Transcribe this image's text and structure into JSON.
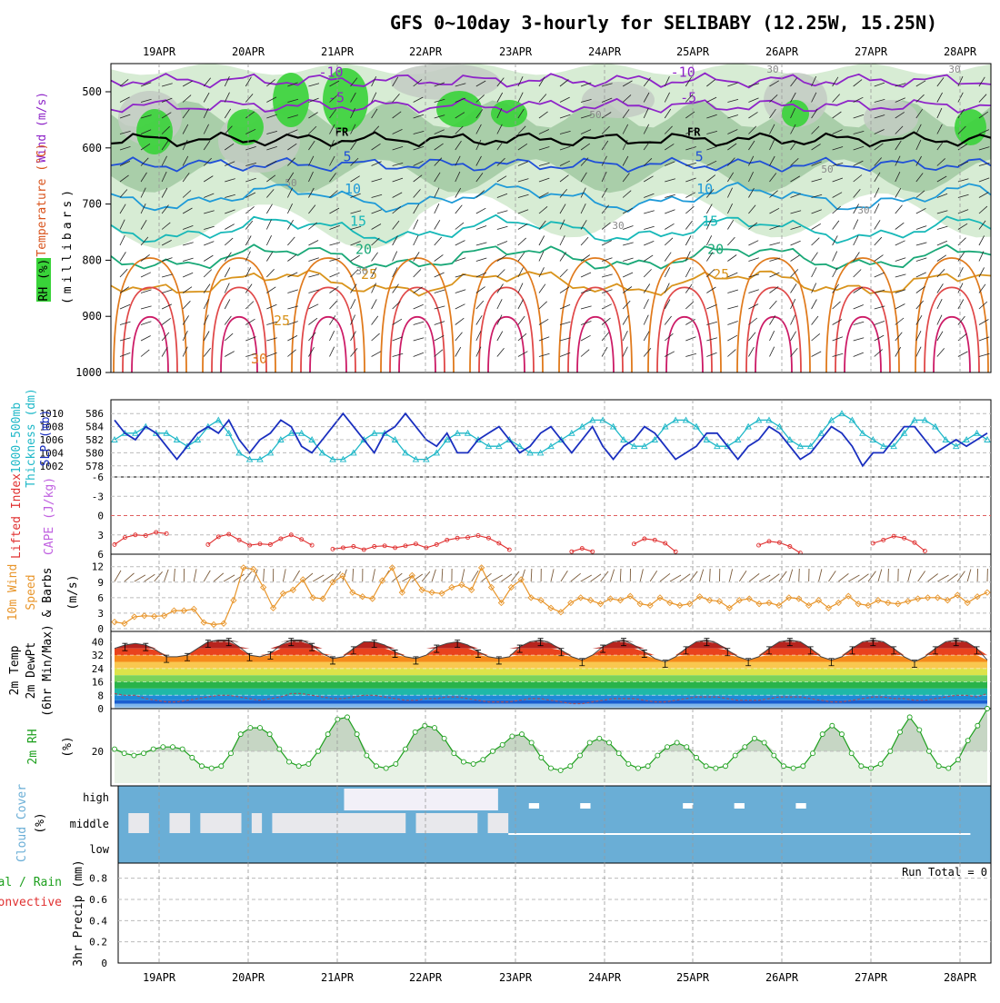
{
  "chart_data": [
    {
      "panel": "upper-air",
      "type": "contour",
      "title": "GFS 0~10day 3-hourly for SELIBABY (12.25W, 15.25N)",
      "x_dates": [
        "19APR",
        "20APR",
        "21APR",
        "22APR",
        "23APR",
        "24APR",
        "25APR",
        "26APR",
        "27APR",
        "28APR"
      ],
      "ylabel": "(millibars)",
      "y_ticks": [
        "500",
        "600",
        "700",
        "800",
        "900",
        "1000"
      ],
      "ylim": [
        1000,
        450
      ],
      "legend": [
        "RH (%)",
        "Temperature (°C)",
        "Wind (m/s)"
      ],
      "contours": [
        {
          "label": "-10",
          "level": -10,
          "color": "#8e24c8",
          "pressure": 480
        },
        {
          "label": "-5",
          "level": -5,
          "color": "#8e24c8",
          "pressure": 525
        },
        {
          "label": "FR",
          "level": 0,
          "color": "#000000",
          "pressure": 585
        },
        {
          "label": "5",
          "level": 5,
          "color": "#1f4fd8",
          "pressure": 630
        },
        {
          "label": "10",
          "level": 10,
          "color": "#1e9ad8",
          "pressure": 688
        },
        {
          "label": "15",
          "level": 15,
          "color": "#17b8b8",
          "pressure": 745
        },
        {
          "label": "20",
          "level": 20,
          "color": "#19a877",
          "pressure": 795
        },
        {
          "label": "25",
          "level": 25,
          "color": "#d9941c",
          "pressure": 840
        }
      ],
      "rh_labels": [
        "30",
        "50",
        "50",
        "50",
        "30",
        "30",
        "30",
        "30"
      ],
      "temp_low_labels": [
        "25",
        "30"
      ]
    },
    {
      "panel": "thickness-slp",
      "type": "line",
      "series": [
        {
          "name": "1000-500mb Thickness (dm)",
          "color": "#1fb8c8",
          "axis": "left",
          "y_ticks": [
            "586",
            "584",
            "582",
            "580",
            "578"
          ],
          "ylim": [
            577,
            587
          ]
        },
        {
          "name": "SLP (mb)",
          "color": "#1a2fbf",
          "axis": "right",
          "y_ticks": [
            "1010",
            "1008",
            "1006",
            "1004",
            "1002"
          ],
          "ylim": [
            1001,
            1011
          ]
        }
      ],
      "slp": [
        1009,
        1007,
        1006,
        1008,
        1007,
        1005,
        1003,
        1005,
        1007,
        1008,
        1007,
        1009,
        1006,
        1004,
        1006,
        1007,
        1009,
        1008,
        1005,
        1004,
        1006,
        1008,
        1010,
        1008,
        1006,
        1004,
        1007,
        1008,
        1010,
        1008,
        1006,
        1005,
        1007,
        1004,
        1004,
        1006,
        1007,
        1008,
        1006,
        1004,
        1005,
        1007,
        1008,
        1006,
        1004,
        1006,
        1008,
        1005,
        1003,
        1005,
        1006,
        1008,
        1007,
        1005,
        1003,
        1004,
        1005,
        1007,
        1007,
        1005,
        1003,
        1005,
        1006,
        1008,
        1007,
        1005,
        1003,
        1004,
        1006,
        1008,
        1007,
        1005,
        1002,
        1004,
        1004,
        1006,
        1008,
        1008,
        1006,
        1004,
        1005,
        1006,
        1005,
        1006,
        1007
      ],
      "thickness": [
        582,
        583,
        583,
        584,
        583,
        583,
        582,
        581,
        582,
        584,
        585,
        583,
        580,
        579,
        579,
        580,
        582,
        583,
        583,
        582,
        580,
        579,
        579,
        580,
        582,
        583,
        583,
        582,
        580,
        579,
        579,
        580,
        582,
        583,
        583,
        582,
        581,
        581,
        582,
        581,
        580,
        580,
        581,
        582,
        583,
        584,
        585,
        585,
        584,
        582,
        581,
        581,
        582,
        584,
        585,
        585,
        584,
        582,
        581,
        581,
        582,
        584,
        585,
        585,
        584,
        582,
        581,
        581,
        583,
        585,
        586,
        585,
        583,
        582,
        581,
        581,
        583,
        585,
        585,
        584,
        582,
        581,
        582,
        583,
        582
      ]
    },
    {
      "panel": "stability",
      "type": "line",
      "series": [
        {
          "name": "Lifted Index",
          "color": "#e03030",
          "axis": "left",
          "y_ticks": [
            "-6",
            "-3",
            "0",
            "3",
            "6"
          ],
          "ylim": [
            -6,
            6
          ]
        },
        {
          "name": "CAPE (J/kg)",
          "color": "#c060e0",
          "axis": "right"
        }
      ],
      "lifted_index": [
        4.5,
        3.4,
        3.0,
        3.1,
        2.6,
        2.8,
        7,
        7,
        7,
        4.5,
        3.3,
        2.9,
        3.8,
        4.6,
        4.4,
        4.5,
        3.6,
        3.0,
        3.7,
        4.6,
        7,
        5.2,
        5.0,
        4.8,
        5.3,
        4.8,
        4.7,
        5.0,
        4.7,
        4.4,
        5.0,
        4.5,
        3.8,
        3.5,
        3.4,
        3.1,
        3.5,
        4.3,
        5.3,
        7,
        7,
        7,
        7,
        7,
        5.6,
        5.1,
        5.6,
        7,
        7,
        7,
        4.4,
        3.6,
        3.8,
        4.3,
        5.6,
        7,
        7,
        7,
        7,
        7,
        7,
        7,
        4.6,
        4.0,
        4.2,
        4.8,
        5.8,
        7,
        7,
        7,
        7,
        7,
        7,
        4.3,
        3.8,
        3.2,
        3.5,
        4.2,
        5.5,
        7,
        7,
        7,
        7,
        7,
        7
      ]
    },
    {
      "panel": "wind-10m",
      "type": "line",
      "series": [
        {
          "name": "10m Wind Speed & Barbs",
          "color": "#e8952a",
          "axis": "left",
          "unit": "(m/s)",
          "y_ticks": [
            "12",
            "9",
            "6",
            "3",
            "0"
          ],
          "ylim": [
            0,
            13
          ]
        }
      ],
      "speed": [
        1.3,
        1.0,
        2.3,
        2.5,
        2.4,
        2.5,
        3.5,
        3.5,
        3.8,
        1.2,
        0.8,
        1.0,
        5.5,
        11.8,
        11.5,
        8.0,
        4.0,
        6.8,
        7.5,
        9.5,
        6.0,
        5.8,
        9.0,
        10.2,
        7.0,
        6.2,
        5.8,
        9.3,
        11.8,
        7.0,
        10.3,
        7.5,
        7.0,
        6.8,
        8.0,
        8.5,
        7.5,
        11.8,
        8.0,
        5.0,
        8.0,
        9.5,
        6.0,
        5.5,
        4.0,
        3.2,
        5.0,
        6.0,
        5.5,
        4.8,
        5.8,
        5.5,
        6.3,
        4.8,
        4.5,
        6.0,
        5.0,
        4.5,
        4.8,
        6.2,
        5.5,
        5.3,
        4.0,
        5.5,
        5.8,
        4.8,
        5.0,
        4.5,
        6.0,
        5.8,
        4.5,
        5.5,
        4.0,
        5.0,
        6.3,
        4.8,
        4.5,
        5.5,
        5.0,
        4.8,
        5.3,
        5.8,
        6.0,
        6.0,
        5.5,
        6.5,
        5.0,
        6.2,
        7.0
      ]
    },
    {
      "panel": "temp-2m",
      "type": "area",
      "series": [
        {
          "name": "2m Temp",
          "color": "#d81a1a"
        },
        {
          "name": "2m DewPt",
          "color": "#c0504d"
        },
        {
          "name": "(6hr Min/Max)",
          "color": "#000000"
        }
      ],
      "y_ticks": [
        "40",
        "32",
        "24",
        "16",
        "8",
        "0"
      ],
      "ylim": [
        0,
        44
      ],
      "temp": [
        36,
        38,
        39,
        38,
        35,
        31,
        31,
        32,
        36,
        40,
        41,
        41,
        37,
        32,
        31,
        33,
        38,
        41,
        41,
        38,
        33,
        30,
        31,
        36,
        40,
        40,
        38,
        34,
        31,
        30,
        32,
        37,
        39,
        40,
        38,
        34,
        31,
        30,
        31,
        37,
        40,
        41,
        39,
        35,
        31,
        29,
        32,
        37,
        40,
        41,
        38,
        34,
        30,
        28,
        31,
        36,
        40,
        41,
        39,
        35,
        31,
        29,
        31,
        36,
        40,
        41,
        40,
        36,
        31,
        29,
        31,
        36,
        40,
        41,
        40,
        36,
        31,
        28,
        31,
        36,
        40,
        41,
        40,
        36,
        29
      ],
      "dewpoint": [
        9,
        8,
        8,
        6,
        5,
        4,
        4,
        5,
        6,
        7,
        8,
        8,
        7,
        6,
        5,
        6,
        7,
        9,
        9,
        8,
        7,
        6,
        6,
        7,
        8,
        8,
        7,
        6,
        5,
        5,
        6,
        6,
        7,
        7,
        6,
        5,
        4,
        4,
        4,
        5,
        6,
        6,
        5,
        4,
        3,
        3,
        4,
        5,
        6,
        6,
        6,
        5,
        4,
        4,
        5,
        6,
        7,
        7,
        7,
        6,
        5,
        5,
        5,
        6,
        7,
        7,
        7,
        6,
        5,
        4,
        4,
        5,
        6,
        7,
        7,
        6,
        6,
        5,
        5,
        6,
        7,
        8,
        8,
        7,
        9
      ]
    },
    {
      "panel": "rh-2m",
      "type": "area",
      "series": [
        {
          "name": "2m RH",
          "color": "#1ea01e",
          "unit": "(%)"
        }
      ],
      "y_ticks": [
        "20"
      ],
      "ylim": [
        5,
        40
      ],
      "rh": [
        21,
        19,
        18,
        19,
        21,
        22,
        22,
        21,
        17,
        13,
        12,
        13,
        19,
        28,
        31,
        31,
        28,
        21,
        15,
        13,
        14,
        20,
        28,
        35,
        36,
        28,
        18,
        13,
        12,
        14,
        21,
        29,
        32,
        31,
        26,
        19,
        15,
        14,
        16,
        20,
        23,
        27,
        28,
        24,
        17,
        12,
        11,
        13,
        18,
        24,
        26,
        24,
        19,
        14,
        12,
        13,
        18,
        22,
        24,
        22,
        17,
        13,
        12,
        13,
        18,
        22,
        26,
        24,
        18,
        13,
        12,
        13,
        19,
        28,
        32,
        28,
        19,
        13,
        12,
        14,
        20,
        29,
        36,
        30,
        20,
        13,
        12,
        16,
        25,
        32,
        40
      ]
    },
    {
      "panel": "cloud-cover",
      "type": "heatmap",
      "series": [
        {
          "name": "Cloud Cover",
          "unit": "(%)",
          "color": "#6aaed6"
        }
      ],
      "levels": [
        "high",
        "middle",
        "low"
      ],
      "high_cloud_cols": [
        [
          22,
          37
        ]
      ],
      "middle_cloud_cols": [
        [
          1,
          3
        ],
        [
          5,
          7
        ],
        [
          8,
          12
        ],
        [
          13,
          14
        ],
        [
          15,
          28
        ],
        [
          29,
          35
        ],
        [
          36,
          38
        ]
      ]
    },
    {
      "panel": "precip",
      "type": "bar",
      "series": [
        {
          "name": "Total / Rain",
          "color": "#1ea01e"
        },
        {
          "name": "Convective",
          "color": "#e03030"
        }
      ],
      "ylabel": "3hr Precip (mm)",
      "y_ticks": [
        "0.8",
        "0.6",
        "0.4",
        "0.2",
        "0"
      ],
      "ylim": [
        0,
        0.9
      ],
      "run_total": "Run Total = 0",
      "values": []
    }
  ],
  "labels": {
    "wind_ms": "Wind (m/s)",
    "temp_c": "Temperature (°C)",
    "rh_pct": "RH (%)",
    "millibars": "(millibars)",
    "thk_title": "1000-500mb",
    "thk_sub": "Thickness (dm)",
    "slp": "SLP (mb)",
    "li": "Lifted Index",
    "cape": "CAPE (J/kg)",
    "wind10": "10m Wind",
    "speed": "Speed",
    "barbs": "& Barbs",
    "ms": "(m/s)",
    "t2m": "2m Temp",
    "dp2m": "2m DewPt",
    "minmax": "(6hr Min/Max)",
    "rh2m": "2m RH",
    "pct": "(%)",
    "cloud": "Cloud Cover",
    "precip": "3hr Precip (mm)",
    "total_rain": "Total / Rain",
    "convective": "Convective"
  },
  "colors": {
    "rh_light": "#d7ecd4",
    "rh_mid": "#9ec79e",
    "rh_grey": "#c3cbc3",
    "rh_green": "#39d339",
    "cloud_blue": "#6aaed6",
    "cloud_light": "#e8e8ec",
    "temp_bands": [
      "#5b2b22",
      "#b7241e",
      "#e9421d",
      "#f58a1c",
      "#f9c74f",
      "#dde34a",
      "#7bd35b",
      "#29b34a",
      "#1fb8a8",
      "#1e8bd8",
      "#1a5ed0",
      "#7db5ec",
      "#a6d0f0"
    ]
  }
}
